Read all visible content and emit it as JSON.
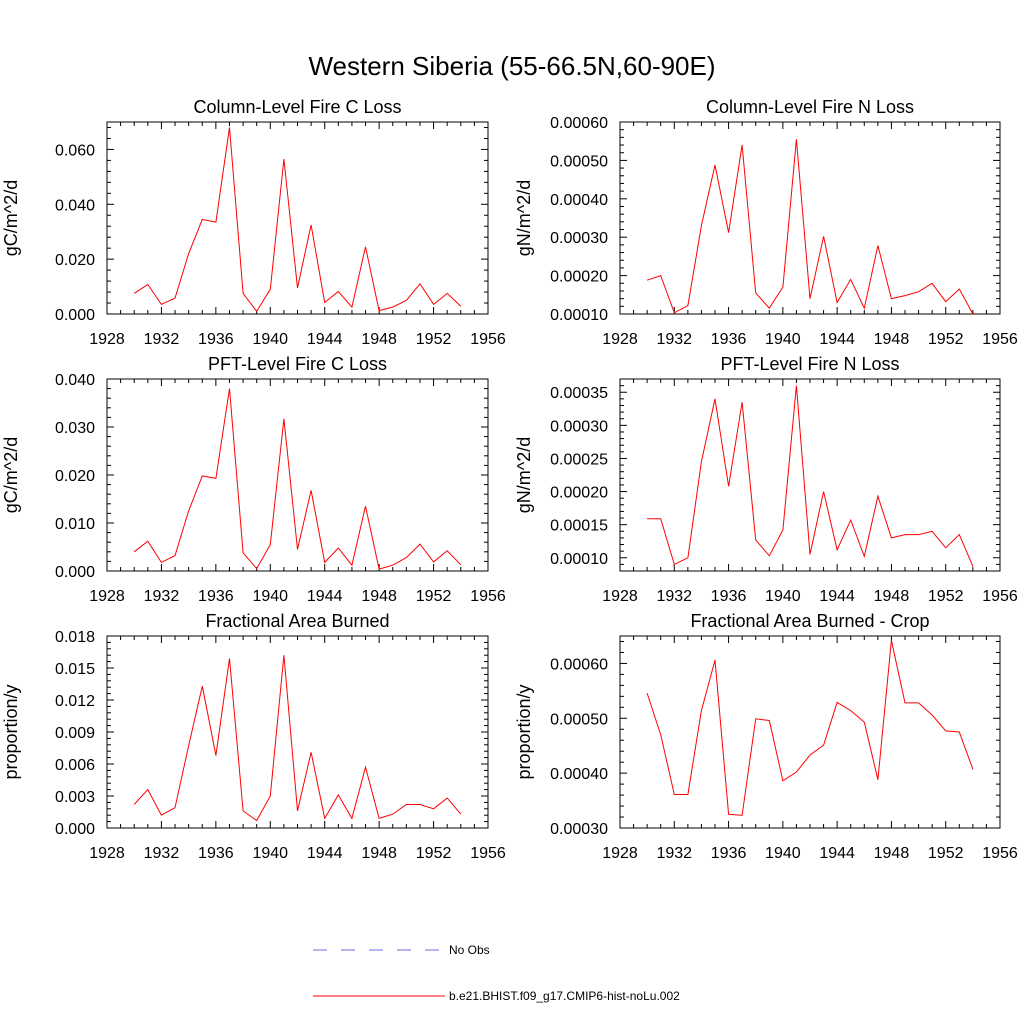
{
  "figure": {
    "title": "Western Siberia (55-66.5N,60-90E)"
  },
  "colors": {
    "model": "#ff0000",
    "obs": "#6e6ee6",
    "axis": "#000000"
  },
  "legend": {
    "items": [
      {
        "label": "No Obs",
        "style": "dashed",
        "color": "#6e6ee6"
      },
      {
        "label": "b.e21.BHIST.f09_g17.CMIP6-hist-noLu.002",
        "style": "solid",
        "color": "#ff0000"
      }
    ]
  },
  "chart_data": [
    {
      "type": "line",
      "title": "Column-Level Fire C Loss",
      "ylabel": "gC/m^2/d",
      "xlim": [
        1928,
        1956
      ],
      "ylim": [
        0,
        0.07
      ],
      "xticks": [
        1928,
        1932,
        1936,
        1940,
        1944,
        1948,
        1952,
        1956
      ],
      "yticks": [
        0,
        0.02,
        0.04,
        0.06
      ],
      "ytick_labels": [
        "0.000",
        "0.020",
        "0.040",
        "0.060"
      ],
      "x": [
        1930,
        1931,
        1932,
        1933,
        1934,
        1935,
        1936,
        1937,
        1938,
        1939,
        1940,
        1941,
        1942,
        1943,
        1944,
        1945,
        1946,
        1947,
        1948,
        1949,
        1950,
        1951,
        1952,
        1953,
        1954
      ],
      "series": [
        {
          "name": "b.e21.BHIST.f09_g17.CMIP6-hist-noLu.002",
          "values": [
            0.0075,
            0.0108,
            0.0035,
            0.0058,
            0.022,
            0.0345,
            0.0335,
            0.068,
            0.0075,
            0.001,
            0.009,
            0.0565,
            0.0095,
            0.0325,
            0.0042,
            0.0082,
            0.0025,
            0.0245,
            0.0012,
            0.0025,
            0.005,
            0.011,
            0.0035,
            0.0075,
            0.0028
          ]
        }
      ]
    },
    {
      "type": "line",
      "title": "Column-Level Fire N Loss",
      "ylabel": "gN/m^2/d",
      "xlim": [
        1928,
        1956
      ],
      "ylim": [
        0.0001,
        0.0006
      ],
      "xticks": [
        1928,
        1932,
        1936,
        1940,
        1944,
        1948,
        1952,
        1956
      ],
      "yticks": [
        0.0001,
        0.0002,
        0.0003,
        0.0004,
        0.0005,
        0.0006
      ],
      "ytick_labels": [
        "0.00010",
        "0.00020",
        "0.00030",
        "0.00040",
        "0.00050",
        "0.00060"
      ],
      "x": [
        1930,
        1931,
        1932,
        1933,
        1934,
        1935,
        1936,
        1937,
        1938,
        1939,
        1940,
        1941,
        1942,
        1943,
        1944,
        1945,
        1946,
        1947,
        1948,
        1949,
        1950,
        1951,
        1952,
        1953,
        1954
      ],
      "series": [
        {
          "name": "b.e21.BHIST.f09_g17.CMIP6-hist-noLu.002",
          "values": [
            0.000188,
            0.0002,
            0.000103,
            0.000122,
            0.00033,
            0.000488,
            0.000312,
            0.00054,
            0.000155,
            0.000115,
            0.00017,
            0.000555,
            0.00014,
            0.000302,
            0.00013,
            0.00019,
            0.000115,
            0.000278,
            0.00014,
            0.000148,
            0.000158,
            0.00018,
            0.000132,
            0.000165,
            0.0001
          ]
        }
      ]
    },
    {
      "type": "line",
      "title": "PFT-Level Fire C Loss",
      "ylabel": "gC/m^2/d",
      "xlim": [
        1928,
        1956
      ],
      "ylim": [
        0,
        0.04
      ],
      "xticks": [
        1928,
        1932,
        1936,
        1940,
        1944,
        1948,
        1952,
        1956
      ],
      "yticks": [
        0,
        0.01,
        0.02,
        0.03,
        0.04
      ],
      "ytick_labels": [
        "0.000",
        "0.010",
        "0.020",
        "0.030",
        "0.040"
      ],
      "x": [
        1930,
        1931,
        1932,
        1933,
        1934,
        1935,
        1936,
        1937,
        1938,
        1939,
        1940,
        1941,
        1942,
        1943,
        1944,
        1945,
        1946,
        1947,
        1948,
        1949,
        1950,
        1951,
        1952,
        1953,
        1954
      ],
      "series": [
        {
          "name": "b.e21.BHIST.f09_g17.CMIP6-hist-noLu.002",
          "values": [
            0.004,
            0.0062,
            0.0018,
            0.0032,
            0.0125,
            0.0198,
            0.0193,
            0.038,
            0.0038,
            0.0005,
            0.0055,
            0.0317,
            0.0045,
            0.0168,
            0.0018,
            0.0048,
            0.0012,
            0.0135,
            0.0004,
            0.0012,
            0.0028,
            0.0056,
            0.0019,
            0.0042,
            0.0013
          ]
        }
      ]
    },
    {
      "type": "line",
      "title": "PFT-Level Fire N Loss",
      "ylabel": "gN/m^2/d",
      "xlim": [
        1928,
        1956
      ],
      "ylim": [
        8e-05,
        0.00037
      ],
      "xticks": [
        1928,
        1932,
        1936,
        1940,
        1944,
        1948,
        1952,
        1956
      ],
      "yticks": [
        0.0001,
        0.00015,
        0.0002,
        0.00025,
        0.0003,
        0.00035
      ],
      "ytick_labels": [
        "0.00010",
        "0.00015",
        "0.00020",
        "0.00025",
        "0.00030",
        "0.00035"
      ],
      "x": [
        1930,
        1931,
        1932,
        1933,
        1934,
        1935,
        1936,
        1937,
        1938,
        1939,
        1940,
        1941,
        1942,
        1943,
        1944,
        1945,
        1946,
        1947,
        1948,
        1949,
        1950,
        1951,
        1952,
        1953,
        1954
      ],
      "series": [
        {
          "name": "b.e21.BHIST.f09_g17.CMIP6-hist-noLu.002",
          "values": [
            0.000159,
            0.000159,
            9e-05,
            0.0001,
            0.000245,
            0.00034,
            0.000208,
            0.000335,
            0.000127,
            0.000103,
            0.000142,
            0.00036,
            0.000105,
            0.0002,
            0.000112,
            0.000157,
            0.000102,
            0.000193,
            0.00013,
            0.000135,
            0.000135,
            0.00014,
            0.000115,
            0.000135,
            8.7e-05
          ]
        }
      ]
    },
    {
      "type": "line",
      "title": "Fractional Area Burned",
      "ylabel": "proportion/y",
      "xlim": [
        1928,
        1956
      ],
      "ylim": [
        0,
        0.018
      ],
      "xticks": [
        1928,
        1932,
        1936,
        1940,
        1944,
        1948,
        1952,
        1956
      ],
      "yticks": [
        0,
        0.003,
        0.006,
        0.009,
        0.012,
        0.015,
        0.018
      ],
      "ytick_labels": [
        "0.000",
        "0.003",
        "0.006",
        "0.009",
        "0.012",
        "0.015",
        "0.018"
      ],
      "x": [
        1930,
        1931,
        1932,
        1933,
        1934,
        1935,
        1936,
        1937,
        1938,
        1939,
        1940,
        1941,
        1942,
        1943,
        1944,
        1945,
        1946,
        1947,
        1948,
        1949,
        1950,
        1951,
        1952,
        1953,
        1954
      ],
      "series": [
        {
          "name": "b.e21.BHIST.f09_g17.CMIP6-hist-noLu.002",
          "values": [
            0.0022,
            0.0036,
            0.0012,
            0.0019,
            0.0077,
            0.0133,
            0.0068,
            0.0159,
            0.0016,
            0.0007,
            0.003,
            0.0162,
            0.0016,
            0.0071,
            0.0009,
            0.0031,
            0.0009,
            0.0057,
            0.0009,
            0.0013,
            0.0022,
            0.0022,
            0.0018,
            0.0028,
            0.0013
          ]
        }
      ]
    },
    {
      "type": "line",
      "title": "Fractional Area Burned - Crop",
      "ylabel": "proportion/y",
      "xlim": [
        1928,
        1956
      ],
      "ylim": [
        0.0003,
        0.00065
      ],
      "xticks": [
        1928,
        1932,
        1936,
        1940,
        1944,
        1948,
        1952,
        1956
      ],
      "yticks": [
        0.0003,
        0.0004,
        0.0005,
        0.0006
      ],
      "ytick_labels": [
        "0.00030",
        "0.00040",
        "0.00050",
        "0.00060"
      ],
      "x": [
        1930,
        1931,
        1932,
        1933,
        1934,
        1935,
        1936,
        1937,
        1938,
        1939,
        1940,
        1941,
        1942,
        1943,
        1944,
        1945,
        1946,
        1947,
        1948,
        1949,
        1950,
        1951,
        1952,
        1953,
        1954
      ],
      "series": [
        {
          "name": "b.e21.BHIST.f09_g17.CMIP6-hist-noLu.002",
          "values": [
            0.000546,
            0.00047,
            0.000361,
            0.000361,
            0.000514,
            0.000606,
            0.000325,
            0.000323,
            0.000499,
            0.000496,
            0.000386,
            0.000402,
            0.000433,
            0.000451,
            0.000529,
            0.000514,
            0.000493,
            0.000388,
            0.000642,
            0.000528,
            0.000528,
            0.000506,
            0.000477,
            0.000475,
            0.000407
          ]
        }
      ]
    }
  ]
}
